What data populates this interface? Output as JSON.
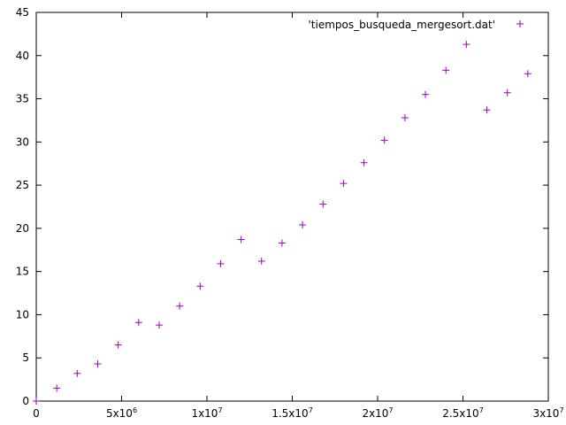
{
  "chart_data": {
    "type": "scatter",
    "title": "",
    "xlabel": "",
    "ylabel": "",
    "xlim": [
      0,
      30000000
    ],
    "ylim": [
      0,
      45
    ],
    "grid": false,
    "legend_position": "top-right",
    "marker": "plus",
    "series_color": "#9400d3",
    "x_ticks": [
      {
        "value": 0,
        "mantissa": "0",
        "exponent": ""
      },
      {
        "value": 5000000,
        "mantissa": "5x10",
        "exponent": "6"
      },
      {
        "value": 10000000,
        "mantissa": "1x10",
        "exponent": "7"
      },
      {
        "value": 15000000,
        "mantissa": "1.5x10",
        "exponent": "7"
      },
      {
        "value": 20000000,
        "mantissa": "2x10",
        "exponent": "7"
      },
      {
        "value": 25000000,
        "mantissa": "2.5x10",
        "exponent": "7"
      },
      {
        "value": 30000000,
        "mantissa": "3x10",
        "exponent": "7"
      }
    ],
    "y_ticks": [
      "0",
      "5",
      "10",
      "15",
      "20",
      "25",
      "30",
      "35",
      "40",
      "45"
    ],
    "series": [
      {
        "name": "'tiempos_busqueda_mergesort.dat'",
        "points": [
          [
            0,
            0
          ],
          [
            1200000,
            1.5
          ],
          [
            2400000,
            3.2
          ],
          [
            3600000,
            4.3
          ],
          [
            4800000,
            6.5
          ],
          [
            6000000,
            9.1
          ],
          [
            7200000,
            8.8
          ],
          [
            8400000,
            11.0
          ],
          [
            9600000,
            13.3
          ],
          [
            10800000,
            15.9
          ],
          [
            12000000,
            18.7
          ],
          [
            13200000,
            16.2
          ],
          [
            14400000,
            18.3
          ],
          [
            15600000,
            20.4
          ],
          [
            16800000,
            22.8
          ],
          [
            18000000,
            25.2
          ],
          [
            19200000,
            27.6
          ],
          [
            20400000,
            30.2
          ],
          [
            21600000,
            32.8
          ],
          [
            22800000,
            35.5
          ],
          [
            24000000,
            38.3
          ],
          [
            25200000,
            41.3
          ],
          [
            26400000,
            33.7
          ],
          [
            27600000,
            35.7
          ],
          [
            28800000,
            37.9
          ]
        ]
      }
    ]
  }
}
